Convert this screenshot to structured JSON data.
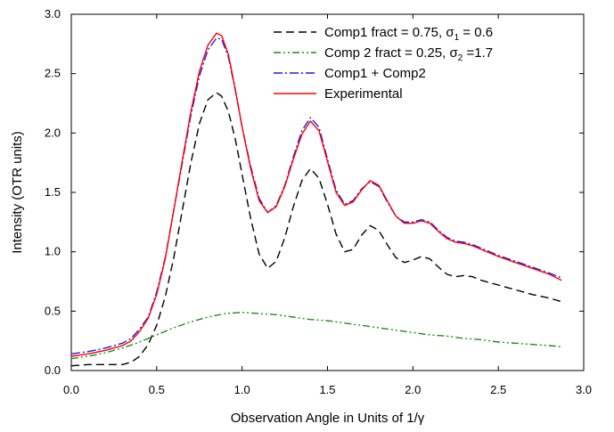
{
  "chart_data": {
    "type": "line",
    "title": "",
    "xlabel": "Observation Angle in Units of 1/γ",
    "ylabel": "Intensity (OTR units)",
    "xlim": [
      0.0,
      3.0
    ],
    "ylim": [
      0.0,
      3.0
    ],
    "xticks": [
      "0.0",
      "0.5",
      "1.0",
      "1.5",
      "2.0",
      "2.5",
      "3.0"
    ],
    "yticks": [
      "0.0",
      "0.5",
      "1.0",
      "1.5",
      "2.0",
      "2.5",
      "3.0"
    ],
    "legend_position": "top-right",
    "grid": false,
    "series": [
      {
        "name": "Comp1 fract = 0.75, σ₁ = 0.6",
        "legend": {
          "pre": "Comp1 fract = 0.75, ",
          "sym": "σ",
          "sub": "1",
          "post": " = 0.6"
        },
        "color": "#000000",
        "dash": "9,5",
        "x": [
          0.0,
          0.1,
          0.2,
          0.3,
          0.35,
          0.4,
          0.45,
          0.5,
          0.55,
          0.6,
          0.65,
          0.7,
          0.75,
          0.8,
          0.85,
          0.88,
          0.92,
          0.96,
          1.0,
          1.05,
          1.1,
          1.15,
          1.2,
          1.25,
          1.3,
          1.35,
          1.4,
          1.45,
          1.5,
          1.55,
          1.6,
          1.65,
          1.7,
          1.75,
          1.8,
          1.85,
          1.9,
          1.95,
          2.0,
          2.05,
          2.1,
          2.15,
          2.2,
          2.25,
          2.3,
          2.35,
          2.4,
          2.5,
          2.6,
          2.7,
          2.8,
          2.87
        ],
        "y": [
          0.04,
          0.05,
          0.05,
          0.05,
          0.07,
          0.12,
          0.22,
          0.38,
          0.62,
          0.95,
          1.35,
          1.75,
          2.08,
          2.28,
          2.34,
          2.31,
          2.18,
          1.95,
          1.65,
          1.28,
          0.98,
          0.86,
          0.92,
          1.12,
          1.38,
          1.6,
          1.7,
          1.62,
          1.4,
          1.15,
          1.0,
          1.02,
          1.14,
          1.22,
          1.18,
          1.06,
          0.95,
          0.91,
          0.93,
          0.96,
          0.94,
          0.87,
          0.81,
          0.79,
          0.8,
          0.79,
          0.76,
          0.72,
          0.68,
          0.64,
          0.61,
          0.58
        ]
      },
      {
        "name": "Comp 2 fract = 0.25, σ₂ =1.7",
        "legend": {
          "pre": "Comp 2 fract = 0.25, ",
          "sym": "σ",
          "sub": "2",
          "post": " =1.7"
        },
        "color": "#228b22",
        "dash": "8,3,2,3,2,3",
        "x": [
          0.0,
          0.1,
          0.2,
          0.3,
          0.4,
          0.5,
          0.6,
          0.7,
          0.8,
          0.9,
          1.0,
          1.1,
          1.2,
          1.3,
          1.4,
          1.5,
          1.6,
          1.7,
          1.8,
          1.9,
          2.0,
          2.1,
          2.2,
          2.3,
          2.4,
          2.5,
          2.6,
          2.7,
          2.8,
          2.87
        ],
        "y": [
          0.1,
          0.12,
          0.15,
          0.19,
          0.24,
          0.3,
          0.36,
          0.41,
          0.45,
          0.48,
          0.49,
          0.48,
          0.47,
          0.45,
          0.43,
          0.42,
          0.4,
          0.38,
          0.36,
          0.34,
          0.32,
          0.3,
          0.29,
          0.27,
          0.26,
          0.24,
          0.23,
          0.22,
          0.21,
          0.2
        ]
      },
      {
        "name": "Comp1 + Comp2",
        "color": "#1a1aee",
        "dash": "10,3,2,3",
        "x": [
          0.0,
          0.1,
          0.2,
          0.3,
          0.35,
          0.4,
          0.45,
          0.5,
          0.55,
          0.6,
          0.65,
          0.7,
          0.75,
          0.8,
          0.85,
          0.88,
          0.92,
          0.96,
          1.0,
          1.05,
          1.1,
          1.15,
          1.2,
          1.25,
          1.3,
          1.35,
          1.4,
          1.45,
          1.5,
          1.55,
          1.6,
          1.65,
          1.7,
          1.75,
          1.8,
          1.85,
          1.9,
          1.95,
          2.0,
          2.05,
          2.1,
          2.15,
          2.2,
          2.25,
          2.3,
          2.35,
          2.4,
          2.5,
          2.6,
          2.7,
          2.8,
          2.87
        ],
        "y": [
          0.14,
          0.16,
          0.19,
          0.23,
          0.27,
          0.35,
          0.45,
          0.66,
          0.95,
          1.35,
          1.75,
          2.15,
          2.48,
          2.7,
          2.8,
          2.79,
          2.64,
          2.36,
          2.05,
          1.72,
          1.45,
          1.33,
          1.39,
          1.56,
          1.8,
          2.02,
          2.13,
          2.05,
          1.78,
          1.52,
          1.4,
          1.43,
          1.53,
          1.59,
          1.55,
          1.42,
          1.3,
          1.25,
          1.25,
          1.27,
          1.25,
          1.18,
          1.12,
          1.09,
          1.08,
          1.06,
          1.03,
          0.97,
          0.92,
          0.87,
          0.82,
          0.78
        ]
      },
      {
        "name": "Experimental",
        "color": "#ff0000",
        "dash": "",
        "x": [
          0.0,
          0.1,
          0.2,
          0.3,
          0.35,
          0.4,
          0.45,
          0.5,
          0.55,
          0.6,
          0.65,
          0.7,
          0.75,
          0.8,
          0.85,
          0.88,
          0.92,
          0.96,
          1.0,
          1.05,
          1.1,
          1.15,
          1.2,
          1.25,
          1.3,
          1.35,
          1.4,
          1.45,
          1.5,
          1.55,
          1.6,
          1.65,
          1.7,
          1.75,
          1.8,
          1.85,
          1.9,
          1.95,
          2.0,
          2.05,
          2.1,
          2.15,
          2.2,
          2.25,
          2.3,
          2.35,
          2.4,
          2.5,
          2.6,
          2.7,
          2.8,
          2.87
        ],
        "y": [
          0.12,
          0.14,
          0.17,
          0.21,
          0.25,
          0.33,
          0.44,
          0.64,
          0.94,
          1.35,
          1.77,
          2.18,
          2.52,
          2.74,
          2.84,
          2.82,
          2.66,
          2.37,
          2.05,
          1.7,
          1.43,
          1.33,
          1.38,
          1.55,
          1.78,
          1.99,
          2.1,
          2.02,
          1.76,
          1.5,
          1.39,
          1.42,
          1.52,
          1.6,
          1.56,
          1.43,
          1.3,
          1.24,
          1.24,
          1.26,
          1.24,
          1.17,
          1.11,
          1.08,
          1.07,
          1.05,
          1.02,
          0.96,
          0.91,
          0.86,
          0.81,
          0.76
        ]
      }
    ]
  }
}
